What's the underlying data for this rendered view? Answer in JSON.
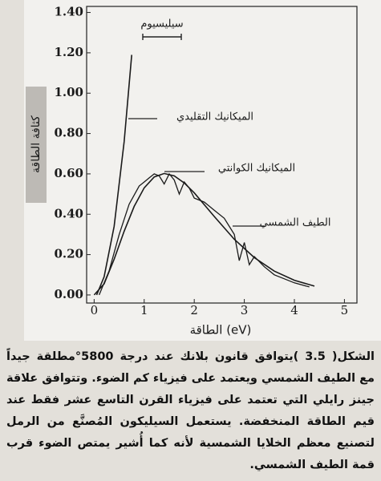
{
  "chart_data": {
    "type": "line",
    "y_label": "كثافة الطاقة",
    "x_label": "الطاقة (eV)",
    "xlim": [
      -0.15,
      5.25
    ],
    "ylim": [
      -0.04,
      1.43
    ],
    "xticks": [
      0,
      1,
      2,
      3,
      4,
      5
    ],
    "yticks": [
      {
        "value": 0,
        "label": "0.00"
      },
      {
        "value": 0.2,
        "label": "0.20"
      },
      {
        "value": 0.4,
        "label": "0.40"
      },
      {
        "value": 0.6,
        "label": "0.60"
      },
      {
        "value": 0.8,
        "label": "0.80"
      },
      {
        "value": 1.0,
        "label": "1.00"
      },
      {
        "value": 1.2,
        "label": "1.20"
      },
      {
        "value": 1.4,
        "label": "1.40"
      }
    ],
    "series": [
      {
        "name": "الميكانيك التقليدي",
        "color": "#1a1a1a",
        "x": [
          0.05,
          0.2,
          0.4,
          0.6,
          0.75
        ],
        "values": [
          0,
          0.09,
          0.34,
          0.76,
          1.19
        ]
      },
      {
        "name": "الميكانيك الكوانتي",
        "color": "#1a1a1a",
        "x": [
          0,
          0.2,
          0.4,
          0.6,
          0.8,
          1.0,
          1.2,
          1.4,
          1.6,
          1.8,
          2.0,
          2.4,
          2.8,
          3.2,
          3.6,
          4.0,
          4.4
        ],
        "values": [
          0,
          0.055,
          0.177,
          0.316,
          0.439,
          0.531,
          0.585,
          0.602,
          0.59,
          0.555,
          0.506,
          0.389,
          0.276,
          0.185,
          0.118,
          0.073,
          0.044
        ]
      },
      {
        "name": "الطيف الشمسي",
        "color": "#1a1a1a",
        "x": [
          0.1,
          0.3,
          0.5,
          0.7,
          0.9,
          1.0,
          1.1,
          1.2,
          1.3,
          1.4,
          1.5,
          1.6,
          1.7,
          1.8,
          1.9,
          2.0,
          2.2,
          2.4,
          2.6,
          2.8,
          2.9,
          3.0,
          3.1,
          3.2,
          3.4,
          3.6,
          3.8,
          4.0,
          4.3
        ],
        "values": [
          0,
          0.12,
          0.3,
          0.45,
          0.54,
          0.56,
          0.58,
          0.6,
          0.59,
          0.55,
          0.6,
          0.57,
          0.5,
          0.56,
          0.53,
          0.48,
          0.46,
          0.42,
          0.38,
          0.3,
          0.17,
          0.26,
          0.15,
          0.19,
          0.14,
          0.1,
          0.08,
          0.06,
          0.04
        ]
      }
    ],
    "annotations": [
      {
        "text": "سيليسيوم"
      }
    ]
  },
  "caption": "الشكل( 3.5 )يتوافق قانون بلانك عند درجة 5800°مطلقة جيداً مع الطيف الشمسي ويعتمد على فيزياء كم الضوء. وتتوافق علاقة جينز رايلي التي تعتمد على فيزياء القرن التاسع عشر فقط عند قيم الطاقة المنخفضة. يستعمل السيليكون المُصنَّع من الرمل لتصنيع معظم الخلايا الشمسية لأنه كما أُشير يمتص الضوء قرب قمة الطيف الشمسي."
}
